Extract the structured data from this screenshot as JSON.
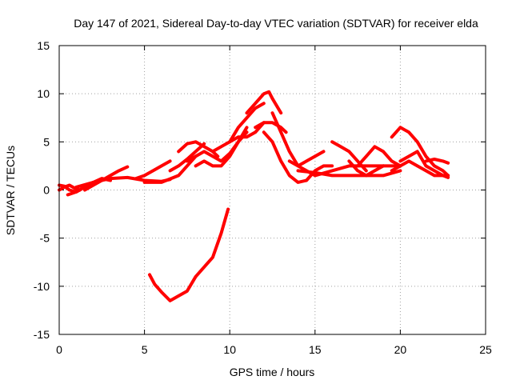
{
  "chart_data": {
    "type": "line",
    "title": "Day 147 of 2021, Sidereal Day-to-day VTEC variation (SDTVAR) for receiver elda",
    "xlabel": "GPS time / hours",
    "ylabel": "SDTVAR / TECUs",
    "xlim": [
      0,
      25
    ],
    "ylim": [
      -15,
      15
    ],
    "xticks": [
      0,
      5,
      10,
      15,
      20,
      25
    ],
    "yticks": [
      -15,
      -10,
      -5,
      0,
      5,
      10,
      15
    ],
    "xtick_labels": [
      "0",
      "5",
      "10",
      "15",
      "20",
      "25"
    ],
    "ytick_labels": [
      "-15",
      "-10",
      "-5",
      "0",
      "5",
      "10",
      "15"
    ],
    "grid": true,
    "color": "#ff0000",
    "series": [
      {
        "name": "arc-01",
        "x": [
          0.0,
          0.3,
          0.6,
          0.9,
          1.2
        ],
        "y": [
          0.0,
          0.3,
          0.5,
          0.2,
          0.0
        ]
      },
      {
        "name": "arc-02",
        "x": [
          0.0,
          0.3,
          0.6,
          1.0,
          1.3
        ],
        "y": [
          0.5,
          0.4,
          0.0,
          -0.2,
          0.1
        ]
      },
      {
        "name": "arc-03",
        "x": [
          0.5,
          1.0,
          1.5,
          2.0,
          2.5,
          3.0
        ],
        "y": [
          -0.5,
          -0.2,
          0.3,
          0.8,
          1.2,
          1.0
        ]
      },
      {
        "name": "arc-04",
        "x": [
          1.5,
          2.0,
          2.5,
          3.0,
          3.5,
          4.0
        ],
        "y": [
          0.0,
          0.5,
          1.0,
          1.5,
          2.0,
          2.4
        ]
      },
      {
        "name": "arc-05",
        "x": [
          1.0,
          2.0,
          3.0,
          4.0,
          5.0,
          6.0,
          6.5
        ],
        "y": [
          0.3,
          0.8,
          1.2,
          1.3,
          1.0,
          0.9,
          1.1
        ]
      },
      {
        "name": "arc-06",
        "x": [
          4.5,
          5.0,
          5.5,
          6.0,
          6.5
        ],
        "y": [
          1.2,
          1.5,
          2.0,
          2.5,
          3.0
        ]
      },
      {
        "name": "arc-07",
        "x": [
          5.0,
          6.0,
          7.0,
          7.5,
          8.0
        ],
        "y": [
          0.8,
          0.8,
          1.5,
          2.5,
          3.5
        ]
      },
      {
        "name": "arc-08",
        "x": [
          6.5,
          7.0,
          7.5,
          8.0,
          8.5
        ],
        "y": [
          2.0,
          2.5,
          3.2,
          4.0,
          4.8
        ]
      },
      {
        "name": "arc-09",
        "x": [
          7.0,
          7.5,
          8.0,
          8.5,
          9.0,
          9.3
        ],
        "y": [
          4.0,
          4.8,
          5.0,
          4.5,
          4.0,
          3.5
        ]
      },
      {
        "name": "arc-10",
        "x": [
          7.5,
          8.0,
          8.5,
          9.0,
          9.5,
          10.0,
          10.5,
          11.0
        ],
        "y": [
          3.0,
          3.5,
          4.0,
          3.5,
          3.0,
          3.8,
          5.0,
          6.0
        ]
      },
      {
        "name": "arc-11",
        "x": [
          8.0,
          8.5,
          9.0,
          9.5,
          10.0,
          10.5,
          11.0
        ],
        "y": [
          2.5,
          3.0,
          2.5,
          2.5,
          3.5,
          5.0,
          6.5
        ]
      },
      {
        "name": "arc-12",
        "x": [
          9.0,
          9.5,
          10.0,
          10.5,
          11.0,
          11.5,
          12.0
        ],
        "y": [
          4.0,
          4.5,
          5.0,
          5.5,
          5.5,
          6.0,
          7.0
        ]
      },
      {
        "name": "arc-13",
        "x": [
          10.0,
          10.5,
          11.0,
          11.5,
          12.0
        ],
        "y": [
          5.0,
          6.5,
          7.5,
          8.5,
          9.0
        ]
      },
      {
        "name": "arc-14",
        "x": [
          11.0,
          11.5,
          12.0,
          12.3,
          12.5,
          13.0
        ],
        "y": [
          8.0,
          9.0,
          10.0,
          10.2,
          9.5,
          8.0
        ]
      },
      {
        "name": "arc-15",
        "x": [
          11.5,
          12.0,
          12.5,
          13.0,
          13.3
        ],
        "y": [
          6.5,
          7.0,
          7.0,
          6.5,
          6.0
        ]
      },
      {
        "name": "arc-16",
        "x": [
          12.0,
          12.5,
          13.0,
          13.5,
          14.0,
          14.5,
          15.0,
          15.5,
          16.0
        ],
        "y": [
          6.0,
          5.0,
          3.0,
          1.5,
          0.8,
          1.0,
          2.0,
          2.5,
          2.5
        ]
      },
      {
        "name": "arc-17",
        "x": [
          12.5,
          13.0,
          13.5,
          14.0,
          15.0,
          16.0,
          17.0,
          18.0,
          19.0,
          20.0
        ],
        "y": [
          8.0,
          6.0,
          4.0,
          2.5,
          1.5,
          2.0,
          2.5,
          2.5,
          2.5,
          2.5
        ]
      },
      {
        "name": "arc-18",
        "x": [
          13.5,
          14.0,
          14.5,
          15.0,
          15.5
        ],
        "y": [
          3.0,
          2.5,
          3.0,
          3.5,
          4.0
        ]
      },
      {
        "name": "arc-19",
        "x": [
          14.0,
          15.0,
          16.0,
          17.0,
          18.0,
          19.0,
          20.0
        ],
        "y": [
          2.0,
          1.8,
          1.5,
          1.5,
          1.5,
          1.5,
          2.0
        ]
      },
      {
        "name": "arc-20",
        "x": [
          16.0,
          16.5,
          17.0,
          17.5,
          18.0
        ],
        "y": [
          5.0,
          4.5,
          4.0,
          3.0,
          2.0
        ]
      },
      {
        "name": "arc-21",
        "x": [
          17.0,
          17.5,
          18.0,
          18.5,
          19.0
        ],
        "y": [
          3.0,
          2.0,
          1.5,
          2.0,
          2.5
        ]
      },
      {
        "name": "arc-22",
        "x": [
          17.5,
          18.0,
          18.5,
          19.0,
          19.5,
          20.0
        ],
        "y": [
          2.5,
          3.5,
          4.5,
          4.0,
          3.0,
          2.5
        ]
      },
      {
        "name": "arc-23",
        "x": [
          19.5,
          20.0,
          20.5,
          21.0,
          21.5,
          22.0,
          22.5,
          22.8
        ],
        "y": [
          5.5,
          6.5,
          6.0,
          5.0,
          3.5,
          2.5,
          2.0,
          1.5
        ]
      },
      {
        "name": "arc-24",
        "x": [
          20.0,
          20.5,
          21.0,
          21.5,
          22.0,
          22.5,
          22.8
        ],
        "y": [
          3.0,
          3.5,
          4.0,
          2.5,
          2.0,
          1.5,
          1.5
        ]
      },
      {
        "name": "arc-25",
        "x": [
          19.5,
          20.0,
          20.5,
          21.0,
          21.5,
          22.0,
          22.5,
          22.8
        ],
        "y": [
          2.0,
          2.5,
          3.0,
          2.5,
          2.0,
          1.5,
          1.5,
          1.3
        ]
      },
      {
        "name": "arc-26",
        "x": [
          21.5,
          22.0,
          22.5,
          22.8
        ],
        "y": [
          3.0,
          3.2,
          3.0,
          2.8
        ]
      },
      {
        "name": "arc-27",
        "x": [
          5.3,
          5.6,
          6.0,
          6.5,
          7.0,
          7.5,
          8.0,
          8.5,
          9.0,
          9.5,
          9.9
        ],
        "y": [
          -8.8,
          -9.8,
          -10.6,
          -11.5,
          -11.0,
          -10.5,
          -9.0,
          -8.0,
          -7.0,
          -4.5,
          -2.0
        ]
      }
    ]
  }
}
